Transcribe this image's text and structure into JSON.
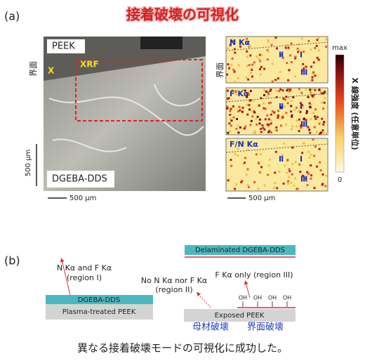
{
  "title": "接着破壊の可視化",
  "panel_a": {
    "label": "(a)",
    "micrograph": {
      "top_layer": "PEEK",
      "interface": "界面",
      "x_marker": "X",
      "xrf_region": "XRF",
      "bottom_layer": "DGEBA-DDS",
      "scale_vertical": "500 µm",
      "scale_horizontal": "500 µm"
    },
    "maps": [
      {
        "label": "N Kα",
        "regions": [
          "Ⅱ",
          "Ⅰ",
          "Ⅲ"
        ]
      },
      {
        "label": "F Kα",
        "regions": [
          "Ⅱ",
          "Ⅰ",
          "Ⅲ"
        ]
      },
      {
        "label": "F/N Kα",
        "regions": [
          "Ⅱ",
          "Ⅰ",
          "Ⅲ"
        ]
      }
    ],
    "maps_interface": "界面",
    "colorbar": {
      "max": "max",
      "min": "0",
      "label": "X 線強度 (任意単位)"
    },
    "maps_scale": "500 µm"
  },
  "panel_b": {
    "label": "(b)",
    "left": {
      "annotation": [
        "N Kα and F Kα",
        "(region I)"
      ],
      "top_layer": "DGEBA-DDS",
      "bottom_layer": "Plasma-treated PEEK"
    },
    "right": {
      "delaminated": "Delaminated DGEBA-DDS",
      "region_ii": [
        "No N Kα nor F Kα",
        "(region II)"
      ],
      "region_iii": "F Kα only (region III)",
      "oh": [
        "OH",
        "OH",
        "OH",
        "OH"
      ],
      "substrate": "Exposed PEEK",
      "cohesive": "母材破壊",
      "interfacial": "界面破壊"
    }
  },
  "caption": "異なる接着破壊モードの可視化に成功した。"
}
